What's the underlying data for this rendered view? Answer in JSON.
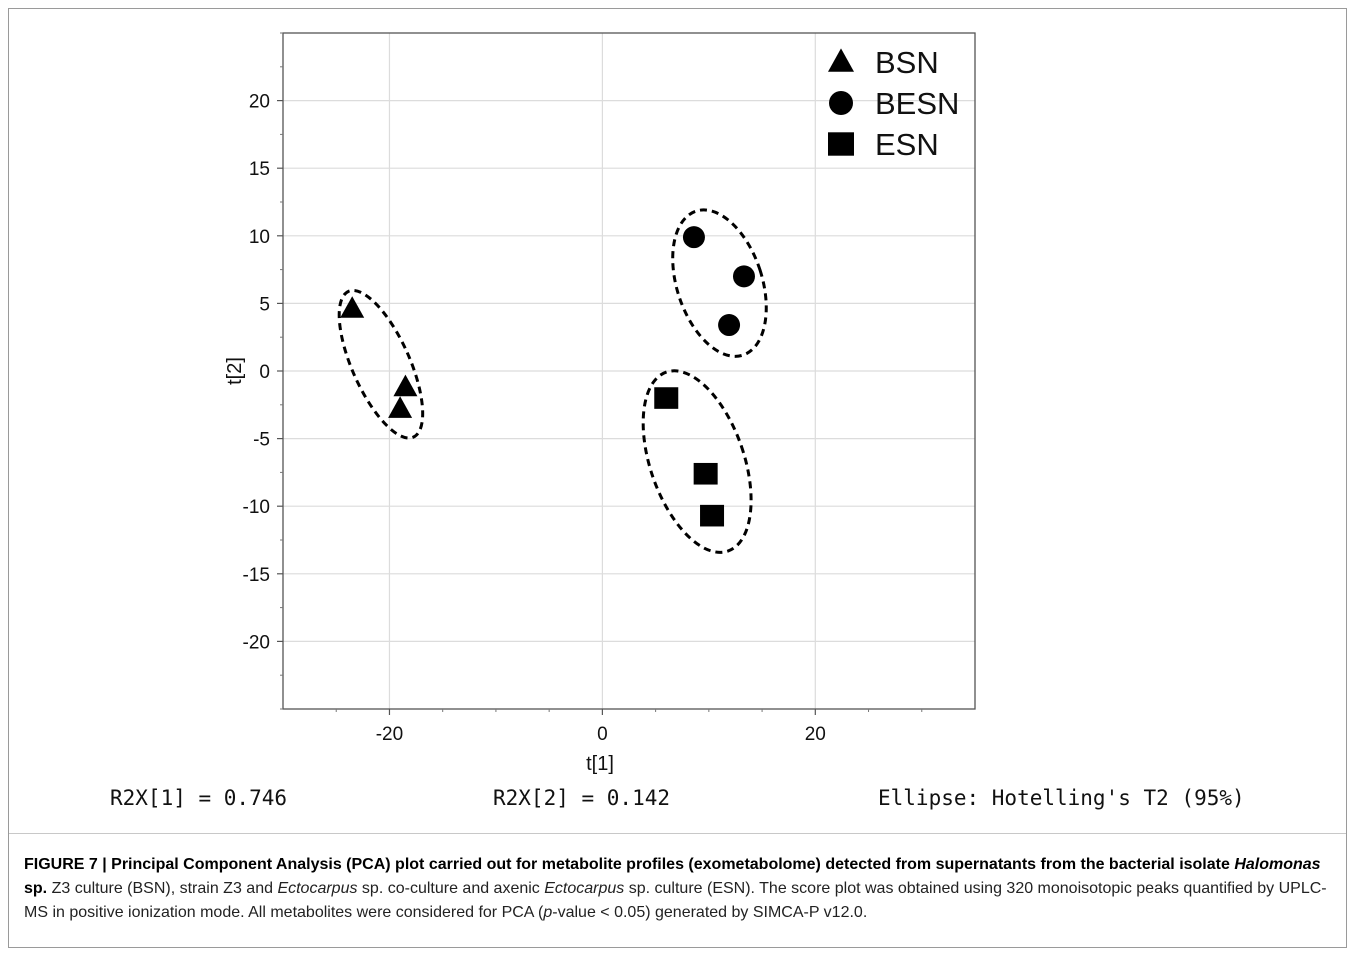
{
  "chart_data": {
    "type": "scatter",
    "xlabel": "t[1]",
    "ylabel": "t[2]",
    "xlim": [
      -30,
      35
    ],
    "ylim": [
      -25,
      25
    ],
    "x_ticks": [
      -20,
      0,
      20
    ],
    "y_ticks": [
      -20,
      -15,
      -10,
      -5,
      0,
      5,
      10,
      15,
      20
    ],
    "grid": true,
    "legend_position": "top-right",
    "series": [
      {
        "name": "BSN",
        "marker": "triangle",
        "points": [
          [
            -23.5,
            4.6
          ],
          [
            -18.5,
            -1.2
          ],
          [
            -19.0,
            -2.8
          ]
        ],
        "ellipse": {
          "cx": -20.8,
          "cy": 0.5,
          "rx": 2.7,
          "ry": 5.9,
          "angle_deg": -24
        }
      },
      {
        "name": "BESN",
        "marker": "circle",
        "points": [
          [
            8.6,
            9.9
          ],
          [
            13.3,
            7.0
          ],
          [
            11.9,
            3.4
          ]
        ],
        "ellipse": {
          "cx": 11.0,
          "cy": 6.5,
          "rx": 4.0,
          "ry": 5.6,
          "angle_deg": -18
        }
      },
      {
        "name": "ESN",
        "marker": "square",
        "points": [
          [
            6.0,
            -2.0
          ],
          [
            9.7,
            -7.6
          ],
          [
            10.3,
            -10.7
          ]
        ],
        "ellipse": {
          "cx": 8.9,
          "cy": -6.7,
          "rx": 4.4,
          "ry": 7.0,
          "angle_deg": -19
        }
      }
    ],
    "color": "#000000"
  },
  "stats": {
    "r2x1": "R2X[1] = 0.746",
    "r2x2": "R2X[2] = 0.142",
    "ellipse_note": "Ellipse: Hotelling's T2 (95%)"
  },
  "caption": {
    "bold_1": "FIGURE 7 | Principal Component Analysis (PCA) plot carried out for metabolite profiles (exometabolome) detected from supernatants from the bacterial isolate ",
    "bold_italic": "Halomonas",
    "bold_2": " sp.",
    "t1": " Z3 culture (BSN), strain Z3 and ",
    "i1": "Ectocarpus",
    "t2": " sp. co-culture and axenic ",
    "i2": "Ectocarpus",
    "t3": " sp. culture (ESN). The score plot was obtained using 320 monoisotopic peaks quantified by UPLC-MS in positive ionization mode. All metabolites were considered for PCA (",
    "i3": "p",
    "t4": "-value < 0.05) generated by SIMCA-P v12.0."
  }
}
